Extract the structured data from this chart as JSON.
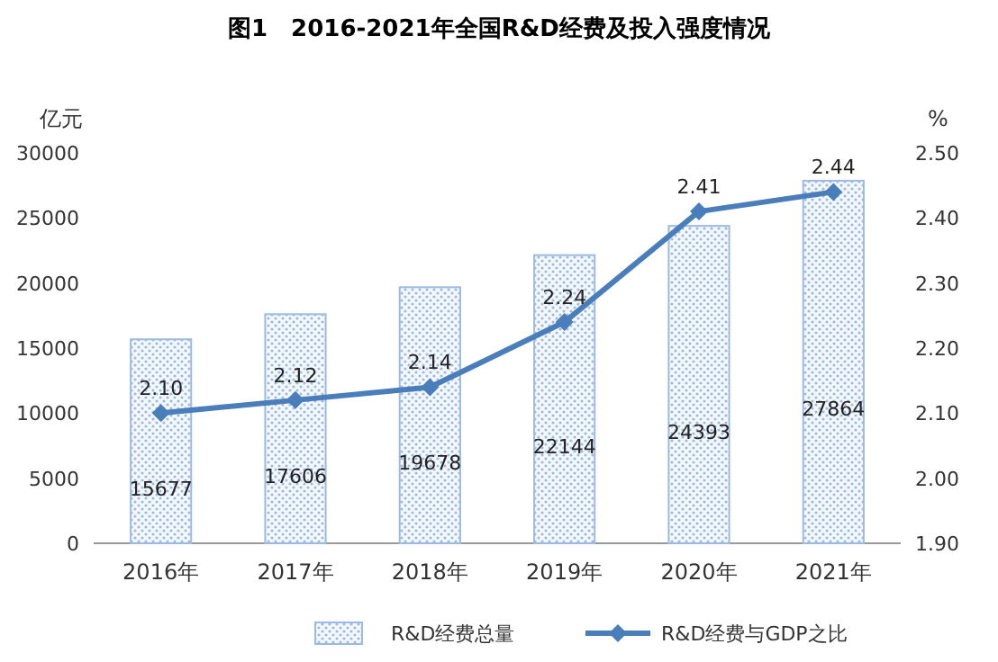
{
  "chart_data": {
    "type": "bar",
    "title": "图1　2016-2021年全国R&D经费及投入强度情况",
    "ylabel": "亿元",
    "y2label": "%",
    "categories": [
      "2016年",
      "2017年",
      "2018年",
      "2019年",
      "2020年",
      "2021年"
    ],
    "series": [
      {
        "name": "R&D经费总量",
        "color": "#9dbbe0",
        "values": [
          15677,
          17606,
          19678,
          22144,
          24393,
          27864
        ],
        "value_labels": [
          "15677",
          "17606",
          "19678",
          "22144",
          "24393",
          "27864"
        ]
      },
      {
        "name": "R&D经费与GDP之比",
        "type": "line",
        "axis": "y2",
        "color": "#4a7ebb",
        "values": [
          2.1,
          2.12,
          2.14,
          2.24,
          2.41,
          2.44
        ],
        "value_labels": [
          "2.10",
          "2.12",
          "2.14",
          "2.24",
          "2.41",
          "2.44"
        ]
      }
    ],
    "ylim": [
      0,
      30000
    ],
    "yticks": [
      0,
      5000,
      10000,
      15000,
      20000,
      25000,
      30000
    ],
    "y2lim": [
      1.9,
      2.5
    ],
    "y2ticks": [
      {
        "value": 1.9,
        "label": "1.90"
      },
      {
        "value": 2.0,
        "label": "2.00"
      },
      {
        "value": 2.1,
        "label": "2.10"
      },
      {
        "value": 2.2,
        "label": "2.20"
      },
      {
        "value": 2.3,
        "label": "2.30"
      },
      {
        "value": 2.4,
        "label": "2.40"
      },
      {
        "value": 2.5,
        "label": "2.50"
      }
    ],
    "legend": "bottom",
    "marker": "diamond",
    "grid": false
  }
}
